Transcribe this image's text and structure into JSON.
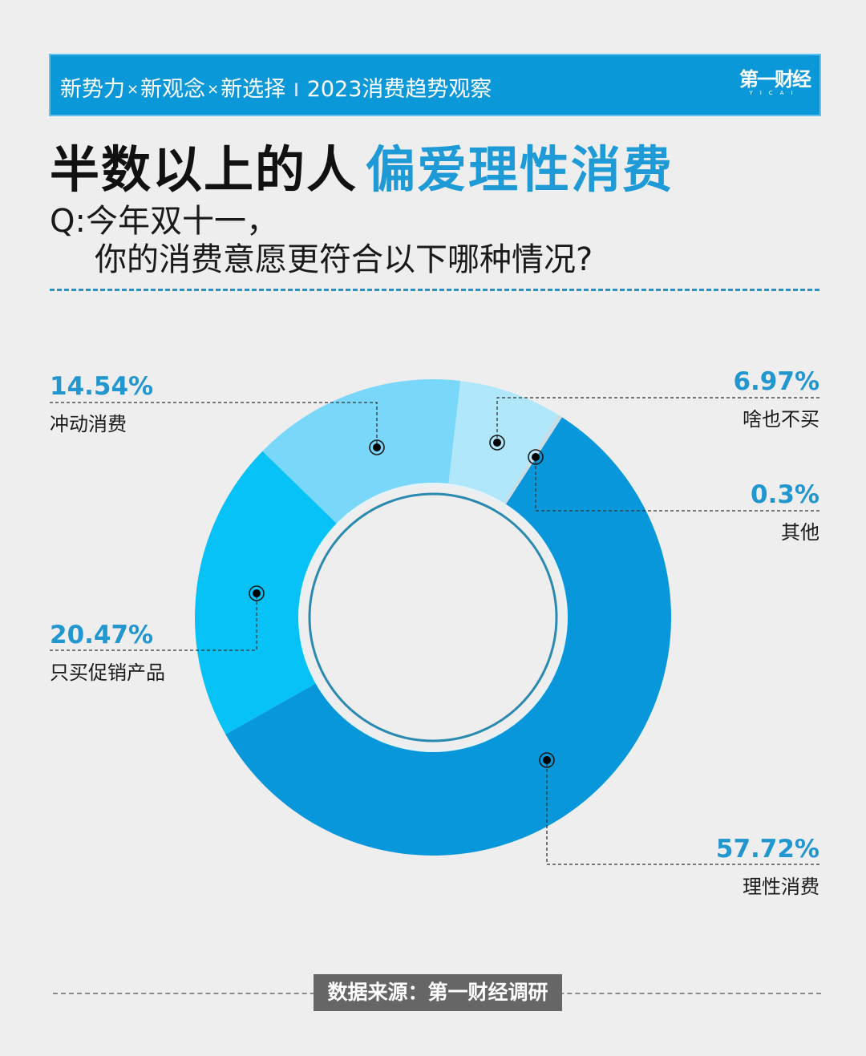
{
  "banner": {
    "parts": [
      "新势力",
      "新观念",
      "新选择"
    ],
    "separator_glyph": "×",
    "divider_glyph": "I",
    "subtitle": "2023消费趋势观察",
    "logo_main": "第一财经",
    "logo_sub": "YICAI",
    "color": "#0a98d8"
  },
  "headline": {
    "dark_part": "半数以上的人",
    "blue_part": "偏爱理性消费",
    "accent_color": "#1e9ad6"
  },
  "question": {
    "line1": "Q:今年双十一，",
    "line2": "你的消费意愿更符合以下哪种情况?"
  },
  "labels": {
    "impulse": {
      "pct": "14.54%",
      "name": "冲动消费"
    },
    "nothing": {
      "pct": "6.97%",
      "name": "啥也不买"
    },
    "other": {
      "pct": "0.3%",
      "name": "其他"
    },
    "promo": {
      "pct": "20.47%",
      "name": "只买促销产品"
    },
    "rational": {
      "pct": "57.72%",
      "name": "理性消费"
    }
  },
  "footer": {
    "source": "数据来源：第一财经调研"
  },
  "chart_data": {
    "type": "pie",
    "subtype": "donut",
    "title": "半数以上的人偏爱理性消费",
    "subtitle": "Q:今年双十一，你的消费意愿更符合以下哪种情况?",
    "categories": [
      "理性消费",
      "只买促销产品",
      "冲动消费",
      "啥也不买",
      "其他"
    ],
    "values": [
      57.72,
      20.47,
      14.54,
      6.97,
      0.3
    ],
    "unit": "%",
    "colors": [
      "#0897da",
      "#07c2f6",
      "#79d7f9",
      "#b0e7fa",
      "#c9dde6"
    ],
    "start_angle_deg_clockwise_from_top": 32.8,
    "direction": "clockwise",
    "legend": "callout labels with dashed leader lines",
    "source": "数据来源：第一财经调研"
  }
}
